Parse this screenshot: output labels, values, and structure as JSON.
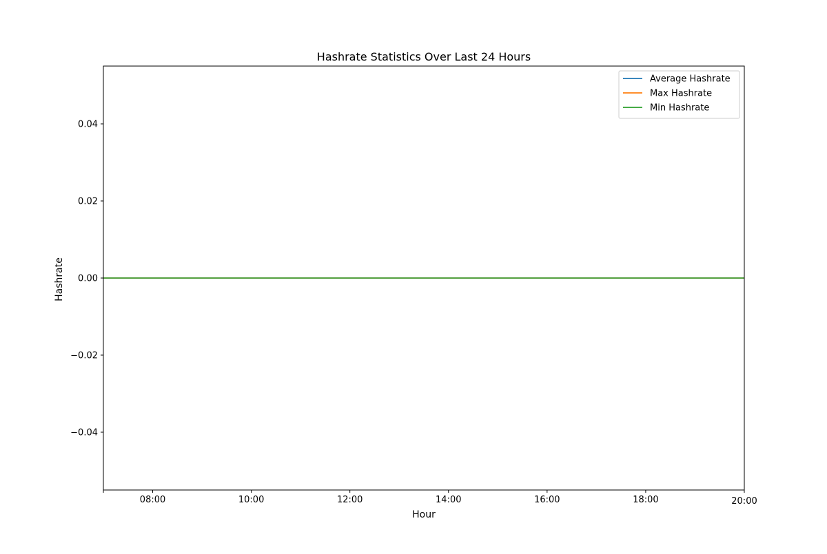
{
  "chart_data": {
    "type": "line",
    "title": "Hashrate Statistics Over Last 24 Hours",
    "xlabel": "Hour",
    "ylabel": "Hashrate",
    "x_axis_type": "time",
    "xlim": [
      "07:00",
      "20:00"
    ],
    "ylim": [
      -0.055,
      0.055
    ],
    "x_ticks": [
      {
        "value": "07:00",
        "label": ""
      },
      {
        "value": "08:00",
        "label": "08:00"
      },
      {
        "value": "10:00",
        "label": "10:00"
      },
      {
        "value": "12:00",
        "label": "12:00"
      },
      {
        "value": "14:00",
        "label": "14:00"
      },
      {
        "value": "16:00",
        "label": "16:00"
      },
      {
        "value": "18:00",
        "label": "18:00"
      },
      {
        "value": "20:00",
        "label": "20:00"
      }
    ],
    "y_ticks": [
      {
        "value": -0.04,
        "label": "−0.04"
      },
      {
        "value": -0.02,
        "label": "−0.02"
      },
      {
        "value": 0.0,
        "label": "0.00"
      },
      {
        "value": 0.02,
        "label": "0.02"
      },
      {
        "value": 0.04,
        "label": "0.04"
      }
    ],
    "series": [
      {
        "name": "Average Hashrate",
        "color": "#1f77b4",
        "x": [
          "07:00",
          "20:00"
        ],
        "y": [
          0,
          0
        ]
      },
      {
        "name": "Max Hashrate",
        "color": "#ff7f0e",
        "x": [
          "07:00",
          "20:00"
        ],
        "y": [
          0,
          0
        ]
      },
      {
        "name": "Min Hashrate",
        "color": "#2ca02c",
        "x": [
          "07:00",
          "20:00"
        ],
        "y": [
          0,
          0
        ]
      }
    ],
    "legend_position": "top-right",
    "grid": false
  }
}
